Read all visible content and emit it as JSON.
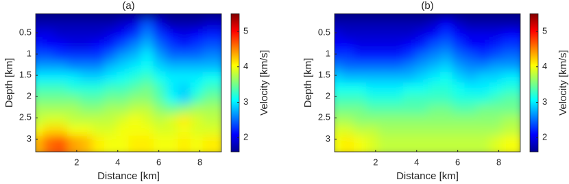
{
  "chart_data": [
    {
      "type": "heatmap",
      "title": "(a)",
      "xlabel": "Distance [km]",
      "ylabel": "Depth [km]",
      "colorbar_label": "Velocity [km/s]",
      "colormap": "jet",
      "y_reversed": true,
      "xlim": [
        0,
        9.05
      ],
      "ylim": [
        0.05,
        3.3
      ],
      "xticks": [
        2,
        4,
        6,
        8
      ],
      "yticks": [
        0.5,
        1,
        1.5,
        2,
        2.5,
        3
      ],
      "clim": [
        1.6,
        5.5
      ],
      "cticks": [
        2,
        3,
        4,
        5
      ],
      "x": [
        0.3,
        0.9,
        1.5,
        2.1,
        2.7,
        3.3,
        3.9,
        4.5,
        5.1,
        5.7,
        6.3,
        6.9,
        7.5,
        8.1,
        8.7
      ],
      "y": [
        0.175,
        0.425,
        0.675,
        0.925,
        1.175,
        1.425,
        1.675,
        1.925,
        2.175,
        2.425,
        2.675,
        2.925,
        3.175
      ],
      "z": [
        [
          1.6,
          1.6,
          1.6,
          1.6,
          1.6,
          1.6,
          1.6,
          1.6,
          1.6,
          1.6,
          1.6,
          1.6,
          1.6,
          1.6,
          1.6
        ],
        [
          1.8,
          1.8,
          1.8,
          1.8,
          1.8,
          1.8,
          1.8,
          1.9,
          2.0,
          2.4,
          2.0,
          1.8,
          1.8,
          1.8,
          1.9
        ],
        [
          2.0,
          2.0,
          1.9,
          1.9,
          1.9,
          1.9,
          2.0,
          2.1,
          2.3,
          2.6,
          2.3,
          2.1,
          2.0,
          2.1,
          2.2
        ],
        [
          2.2,
          2.1,
          2.1,
          2.0,
          2.0,
          2.1,
          2.2,
          2.4,
          2.6,
          2.8,
          2.5,
          2.3,
          2.2,
          2.3,
          2.4
        ],
        [
          2.4,
          2.4,
          2.3,
          2.3,
          2.3,
          2.3,
          2.5,
          2.7,
          2.8,
          3.0,
          2.7,
          2.5,
          2.5,
          2.5,
          2.6
        ],
        [
          2.7,
          2.7,
          2.7,
          2.6,
          2.6,
          2.6,
          2.8,
          2.9,
          3.0,
          3.1,
          2.9,
          2.8,
          2.8,
          2.8,
          2.8
        ],
        [
          3.0,
          3.0,
          3.0,
          3.0,
          2.9,
          2.9,
          3.0,
          3.1,
          3.2,
          3.3,
          3.1,
          3.0,
          3.0,
          3.0,
          3.1
        ],
        [
          3.3,
          3.3,
          3.3,
          3.2,
          3.2,
          3.2,
          3.3,
          3.3,
          3.4,
          3.5,
          3.3,
          3.0,
          2.9,
          3.1,
          3.3
        ],
        [
          3.5,
          3.5,
          3.5,
          3.5,
          3.4,
          3.4,
          3.5,
          3.5,
          3.6,
          3.6,
          3.4,
          3.1,
          2.9,
          3.3,
          3.5
        ],
        [
          3.7,
          3.7,
          3.7,
          3.7,
          3.6,
          3.6,
          3.7,
          3.7,
          3.8,
          3.8,
          3.6,
          3.5,
          3.6,
          3.7,
          3.7
        ],
        [
          3.8,
          3.9,
          3.9,
          3.8,
          3.8,
          3.8,
          3.8,
          3.9,
          4.0,
          3.9,
          3.8,
          3.9,
          4.1,
          3.9,
          3.8
        ],
        [
          4.0,
          4.2,
          4.2,
          4.0,
          4.0,
          3.9,
          3.9,
          4.0,
          4.0,
          4.0,
          3.9,
          3.9,
          4.0,
          3.9,
          3.9
        ],
        [
          4.3,
          4.6,
          4.7,
          4.4,
          4.3,
          4.1,
          4.0,
          4.0,
          4.1,
          4.1,
          4.0,
          4.0,
          4.1,
          4.0,
          4.1
        ]
      ]
    },
    {
      "type": "heatmap",
      "title": "(b)",
      "xlabel": "Distance [km]",
      "ylabel": "Depth [km]",
      "colorbar_label": "Velocity [km/s]",
      "colormap": "jet",
      "y_reversed": true,
      "xlim": [
        0,
        9.05
      ],
      "ylim": [
        0.05,
        3.3
      ],
      "xticks": [
        2,
        4,
        6,
        8
      ],
      "yticks": [
        0.5,
        1,
        1.5,
        2,
        2.5,
        3
      ],
      "clim": [
        1.6,
        5.5
      ],
      "cticks": [
        2,
        3,
        4,
        5
      ],
      "x": [
        0.3,
        0.9,
        1.5,
        2.1,
        2.7,
        3.3,
        3.9,
        4.5,
        5.1,
        5.7,
        6.3,
        6.9,
        7.5,
        8.1,
        8.7
      ],
      "y": [
        0.175,
        0.425,
        0.675,
        0.925,
        1.175,
        1.425,
        1.675,
        1.925,
        2.175,
        2.425,
        2.675,
        2.925,
        3.175
      ],
      "z": [
        [
          1.6,
          1.6,
          1.6,
          1.6,
          1.6,
          1.6,
          1.6,
          1.6,
          1.6,
          1.6,
          1.6,
          1.6,
          1.6,
          1.6,
          1.6
        ],
        [
          1.8,
          1.8,
          1.8,
          1.8,
          1.8,
          1.8,
          1.8,
          1.8,
          1.9,
          2.1,
          1.9,
          1.8,
          1.8,
          1.8,
          1.8
        ],
        [
          2.0,
          1.9,
          1.9,
          1.9,
          1.9,
          1.9,
          1.9,
          2.0,
          2.1,
          2.3,
          2.1,
          2.0,
          2.0,
          2.0,
          2.1
        ],
        [
          2.1,
          2.1,
          2.0,
          2.0,
          2.0,
          2.0,
          2.1,
          2.2,
          2.4,
          2.5,
          2.3,
          2.1,
          2.1,
          2.2,
          2.3
        ],
        [
          2.3,
          2.3,
          2.2,
          2.2,
          2.2,
          2.2,
          2.3,
          2.5,
          2.6,
          2.7,
          2.5,
          2.4,
          2.3,
          2.4,
          2.5
        ],
        [
          2.6,
          2.5,
          2.5,
          2.5,
          2.5,
          2.5,
          2.6,
          2.7,
          2.8,
          2.9,
          2.7,
          2.6,
          2.6,
          2.7,
          2.7
        ],
        [
          2.9,
          2.8,
          2.8,
          2.8,
          2.8,
          2.8,
          2.8,
          2.9,
          3.0,
          3.1,
          2.9,
          2.8,
          2.9,
          2.9,
          3.0
        ],
        [
          3.1,
          3.1,
          3.1,
          3.0,
          3.0,
          3.0,
          3.1,
          3.1,
          3.2,
          3.2,
          3.1,
          3.0,
          3.0,
          3.1,
          3.2
        ],
        [
          3.3,
          3.3,
          3.3,
          3.2,
          3.2,
          3.2,
          3.3,
          3.3,
          3.3,
          3.3,
          3.2,
          3.2,
          3.2,
          3.3,
          3.4
        ],
        [
          3.5,
          3.5,
          3.5,
          3.4,
          3.4,
          3.4,
          3.4,
          3.4,
          3.5,
          3.5,
          3.4,
          3.4,
          3.5,
          3.5,
          3.5
        ],
        [
          3.7,
          3.7,
          3.6,
          3.6,
          3.6,
          3.6,
          3.6,
          3.6,
          3.6,
          3.6,
          3.6,
          3.6,
          3.6,
          3.6,
          3.7
        ],
        [
          3.9,
          3.9,
          3.8,
          3.8,
          3.7,
          3.7,
          3.7,
          3.7,
          3.7,
          3.7,
          3.7,
          3.7,
          3.7,
          3.7,
          3.8
        ],
        [
          4.0,
          4.1,
          4.0,
          3.9,
          3.8,
          3.8,
          3.8,
          3.8,
          3.8,
          3.8,
          3.8,
          3.8,
          3.8,
          3.9,
          4.0
        ]
      ]
    }
  ]
}
